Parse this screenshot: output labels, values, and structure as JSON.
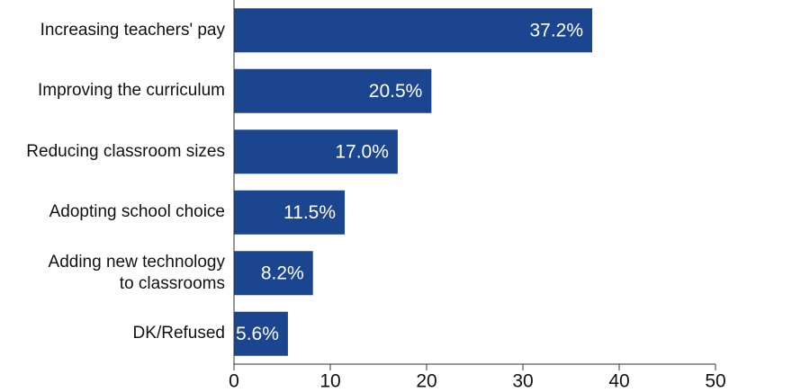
{
  "chart_data": {
    "type": "bar",
    "orientation": "horizontal",
    "categories": [
      "Increasing teachers' pay",
      "Improving the curriculum",
      "Reducing classroom sizes",
      "Adopting school choice",
      "Adding new technology\nto classrooms",
      "DK/Refused"
    ],
    "values": [
      37.2,
      20.5,
      17.0,
      11.5,
      8.2,
      5.6
    ],
    "value_labels": [
      "37.2%",
      "20.5%",
      "17.0%",
      "11.5%",
      "8.2%",
      "5.6%"
    ],
    "color": "#1b458f",
    "xlim": [
      0,
      50
    ],
    "xticks": [
      0,
      10,
      20,
      30,
      40,
      50
    ]
  }
}
